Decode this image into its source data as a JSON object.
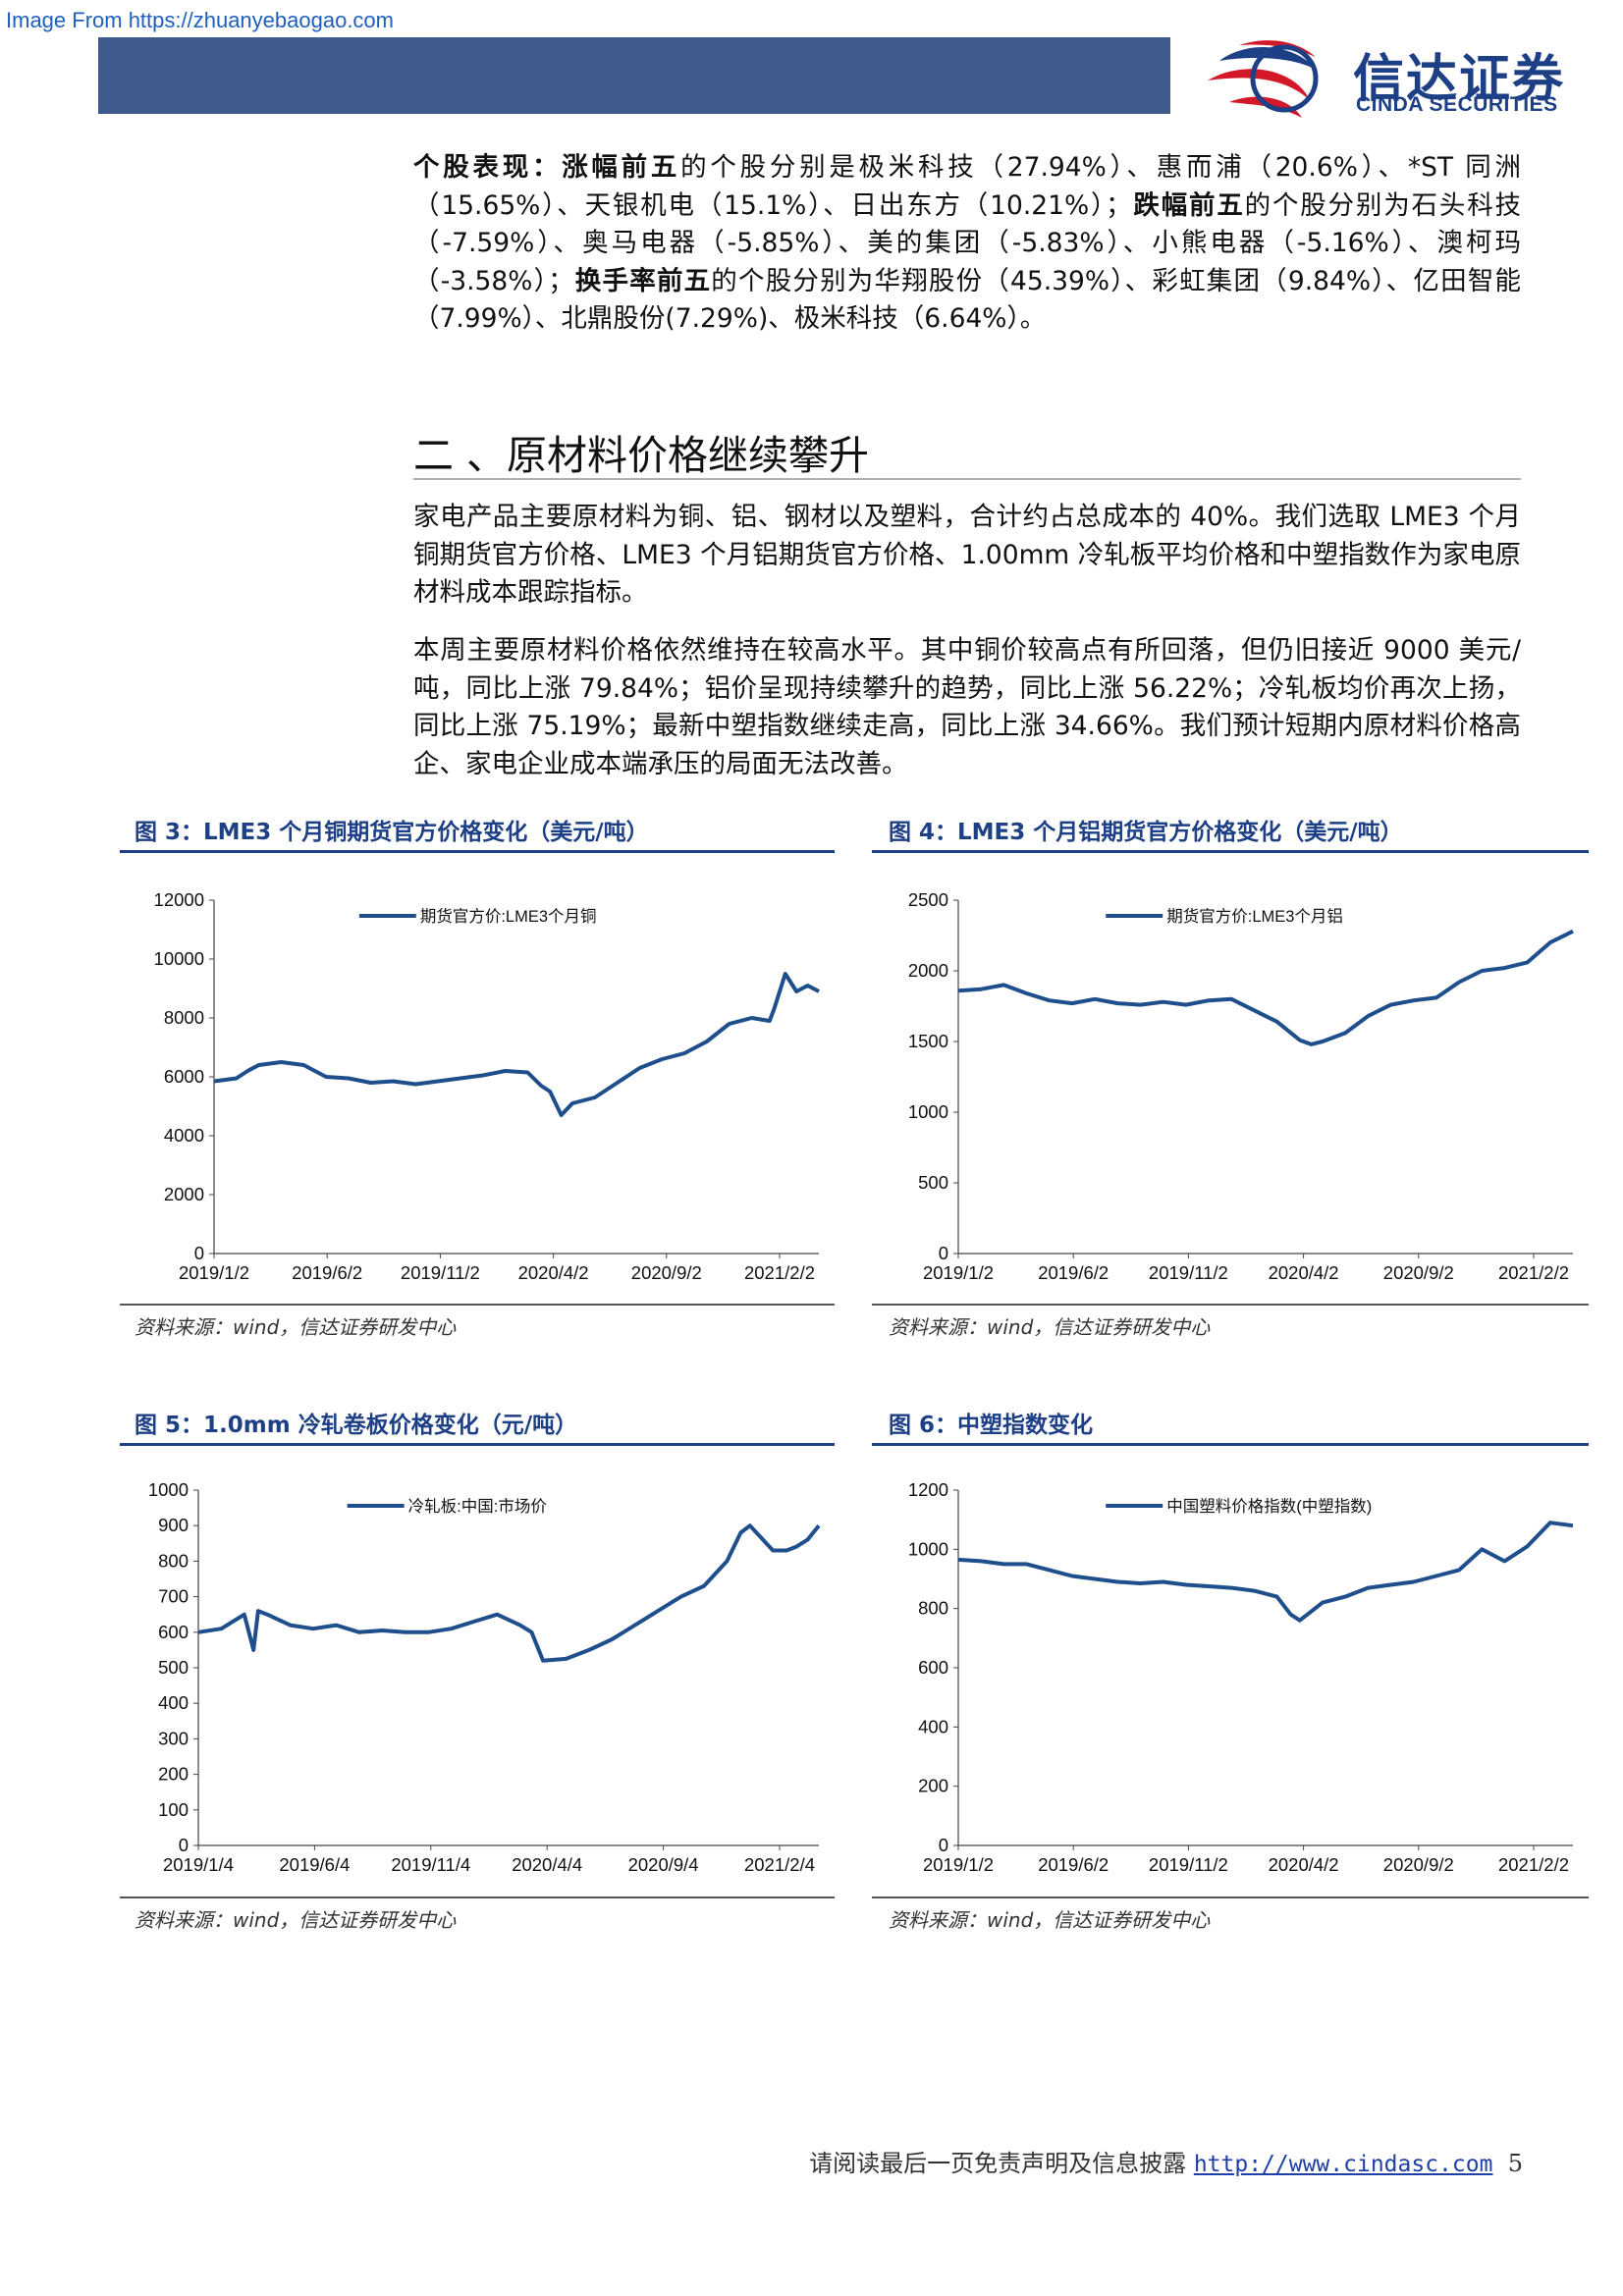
{
  "watermark": "Image From https://zhuanyebaogao.com",
  "logo": {
    "cn": "信达证券",
    "en": "CINDA SECURITIES"
  },
  "stocks_paragraph": {
    "label_overall": "个股表现：",
    "label_up": "涨幅前五",
    "text_up": "的个股分别是极米科技（27.94%）、惠而浦（20.6%）、*ST 同洲（15.65%）、天银机电（15.1%）、日出东方（10.21%）；",
    "label_down": "跌幅前五",
    "text_down": "的个股分别为石头科技（-7.59%）、奥马电器（-5.85%）、美的集团（-5.83%）、小熊电器（-5.16%）、澳柯玛（-3.58%）；",
    "label_turnover": "换手率前五",
    "text_turnover": "的个股分别为华翔股份（45.39%）、彩虹集团（9.84%）、亿田智能（7.99%）、北鼎股份(7.29%)、极米科技（6.64%）。"
  },
  "section_title": "二 、原材料价格继续攀升",
  "paragraph_1": "家电产品主要原材料为铜、铝、钢材以及塑料，合计约占总成本的 40%。我们选取 LME3 个月铜期货官方价格、LME3 个月铝期货官方价格、1.00mm 冷轧板平均价格和中塑指数作为家电原材料成本跟踪指标。",
  "paragraph_2": "本周主要原材料价格依然维持在较高水平。其中铜价较高点有所回落，但仍旧接近 9000 美元/吨，同比上涨 79.84%；铝价呈现持续攀升的趋势，同比上涨 56.22%；冷轧板均价再次上扬，同比上涨 75.19%；最新中塑指数继续走高，同比上涨 34.66%。我们预计短期内原材料价格高企、家电企业成本端承压的局面无法改善。",
  "figures": [
    {
      "title": "图 3：LME3 个月铜期货官方价格变化（美元/吨）",
      "source": "资料来源：wind，信达证券研发中心"
    },
    {
      "title": "图 4：LME3 个月铝期货官方价格变化（美元/吨）",
      "source": "资料来源：wind，信达证券研发中心"
    },
    {
      "title": "图 5：1.0mm 冷轧卷板价格变化（元/吨）",
      "source": "资料来源：wind，信达证券研发中心"
    },
    {
      "title": "图 6：中塑指数变化",
      "source": "资料来源：wind，信达证券研发中心"
    }
  ],
  "footer": {
    "text": "请阅读最后一页免责声明及信息披露 ",
    "link": "http://www.cindasc.com",
    "page": "5"
  },
  "colors": {
    "series": "#1f4e8c",
    "title": "#1d3f86",
    "header_bar": "#3f5a8c"
  },
  "chart_data": [
    {
      "type": "line",
      "title": "LME3 个月铜期货官方价格变化（美元/吨）",
      "legend": "期货官方价:LME3个月铜",
      "x_ticks": [
        "2019/1/2",
        "2019/6/2",
        "2019/11/2",
        "2020/4/2",
        "2020/9/2",
        "2021/2/2"
      ],
      "y_ticks": [
        0,
        2000,
        4000,
        6000,
        8000,
        10000,
        12000
      ],
      "ylim": [
        0,
        12000
      ],
      "xlim": [
        0,
        27
      ],
      "x": [
        0,
        1,
        1.5,
        2,
        3,
        4,
        5,
        6,
        7,
        8,
        9,
        10,
        11,
        12,
        13,
        14,
        14.6,
        15,
        15.5,
        16,
        17,
        18,
        19,
        20,
        21,
        22,
        23,
        24,
        24.8,
        25,
        25.5,
        26,
        26.5,
        27
      ],
      "values": [
        5850,
        5950,
        6200,
        6400,
        6500,
        6400,
        6000,
        5950,
        5800,
        5850,
        5750,
        5850,
        5950,
        6050,
        6200,
        6150,
        5700,
        5500,
        4700,
        5100,
        5300,
        5800,
        6300,
        6600,
        6800,
        7200,
        7800,
        8000,
        7900,
        8300,
        9500,
        8900,
        9100,
        8900
      ]
    },
    {
      "type": "line",
      "title": "LME3 个月铝期货官方价格变化（美元/吨）",
      "legend": "期货官方价:LME3个月铝",
      "x_ticks": [
        "2019/1/2",
        "2019/6/2",
        "2019/11/2",
        "2020/4/2",
        "2020/9/2",
        "2021/2/2"
      ],
      "y_ticks": [
        0,
        500,
        1000,
        1500,
        2000,
        2500
      ],
      "ylim": [
        0,
        2500
      ],
      "xlim": [
        0,
        27
      ],
      "x": [
        0,
        1,
        2,
        3,
        4,
        5,
        6,
        7,
        8,
        9,
        10,
        11,
        12,
        13,
        14,
        15,
        15.5,
        16,
        17,
        18,
        19,
        20,
        21,
        22,
        23,
        24,
        25,
        26,
        27
      ],
      "values": [
        1860,
        1870,
        1900,
        1840,
        1790,
        1770,
        1800,
        1770,
        1760,
        1780,
        1760,
        1790,
        1800,
        1720,
        1640,
        1510,
        1480,
        1500,
        1560,
        1680,
        1760,
        1790,
        1810,
        1920,
        2000,
        2020,
        2060,
        2200,
        2280
      ]
    },
    {
      "type": "line",
      "title": "1.0mm 冷轧卷板价格变化（元/吨）",
      "legend": "冷轧板:中国:市场价",
      "x_ticks": [
        "2019/1/4",
        "2019/6/4",
        "2019/11/4",
        "2020/4/4",
        "2020/9/4",
        "2021/2/4"
      ],
      "y_ticks": [
        0,
        100,
        200,
        300,
        400,
        500,
        600,
        700,
        800,
        900,
        1000
      ],
      "ylim": [
        0,
        1000
      ],
      "xlim": [
        0,
        27
      ],
      "x": [
        0,
        1,
        2,
        2.4,
        2.6,
        3,
        4,
        5,
        6,
        7,
        8,
        9,
        10,
        11,
        12,
        13,
        14,
        14.5,
        15,
        16,
        17,
        18,
        19,
        20,
        21,
        22,
        23,
        23.6,
        24,
        25,
        25.6,
        26,
        26.5,
        27
      ],
      "values": [
        600,
        610,
        650,
        550,
        660,
        650,
        620,
        610,
        620,
        600,
        605,
        600,
        600,
        610,
        630,
        650,
        620,
        600,
        520,
        525,
        550,
        580,
        620,
        660,
        700,
        730,
        800,
        880,
        900,
        830,
        830,
        840,
        860,
        900
      ]
    },
    {
      "type": "line",
      "title": "中塑指数变化",
      "legend": "中国塑料价格指数(中塑指数)",
      "x_ticks": [
        "2019/1/2",
        "2019/6/2",
        "2019/11/2",
        "2020/4/2",
        "2020/9/2",
        "2021/2/2"
      ],
      "y_ticks": [
        0,
        200,
        400,
        600,
        800,
        1000,
        1200
      ],
      "ylim": [
        0,
        1200
      ],
      "xlim": [
        0,
        27
      ],
      "x": [
        0,
        1,
        2,
        3,
        4,
        5,
        6,
        7,
        8,
        9,
        10,
        11,
        12,
        13,
        14,
        14.6,
        15,
        15.5,
        16,
        17,
        18,
        19,
        20,
        21,
        22,
        23,
        24,
        25,
        26,
        27
      ],
      "values": [
        965,
        960,
        950,
        950,
        930,
        910,
        900,
        890,
        885,
        890,
        880,
        875,
        870,
        860,
        840,
        780,
        760,
        790,
        820,
        840,
        870,
        880,
        890,
        910,
        930,
        1000,
        960,
        1010,
        1090,
        1080
      ]
    }
  ]
}
